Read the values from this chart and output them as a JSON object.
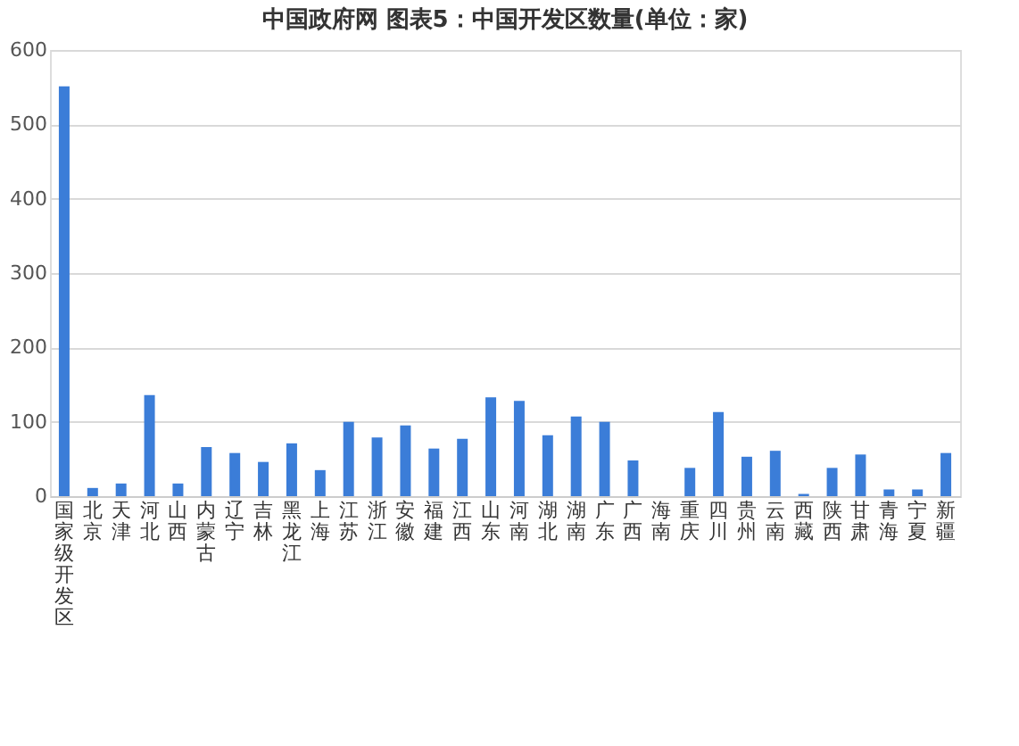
{
  "chart_data": {
    "type": "bar",
    "title": "中国政府网 图表5：中国开发区数量(单位：家)",
    "categories": [
      "国家级开发区",
      "北京",
      "天津",
      "河北",
      "山西",
      "内蒙古",
      "辽宁",
      "吉林",
      "黑龙江",
      "上海",
      "江苏",
      "浙江",
      "安徽",
      "福建",
      "江西",
      "山东",
      "河南",
      "湖北",
      "湖南",
      "广东",
      "广西",
      "海南",
      "重庆",
      "四川",
      "贵州",
      "云南",
      "西藏",
      "陕西",
      "甘肃",
      "青海",
      "宁夏",
      "新疆"
    ],
    "values": [
      551,
      11,
      17,
      136,
      17,
      66,
      58,
      46,
      71,
      35,
      100,
      79,
      95,
      64,
      77,
      133,
      128,
      82,
      107,
      100,
      48,
      0,
      38,
      113,
      53,
      61,
      3,
      38,
      56,
      9,
      9,
      58
    ],
    "color": "#3b7dd8",
    "ylim": [
      0,
      600
    ],
    "yticks": [
      0,
      100,
      200,
      300,
      400,
      500,
      600
    ],
    "grid": "y"
  }
}
